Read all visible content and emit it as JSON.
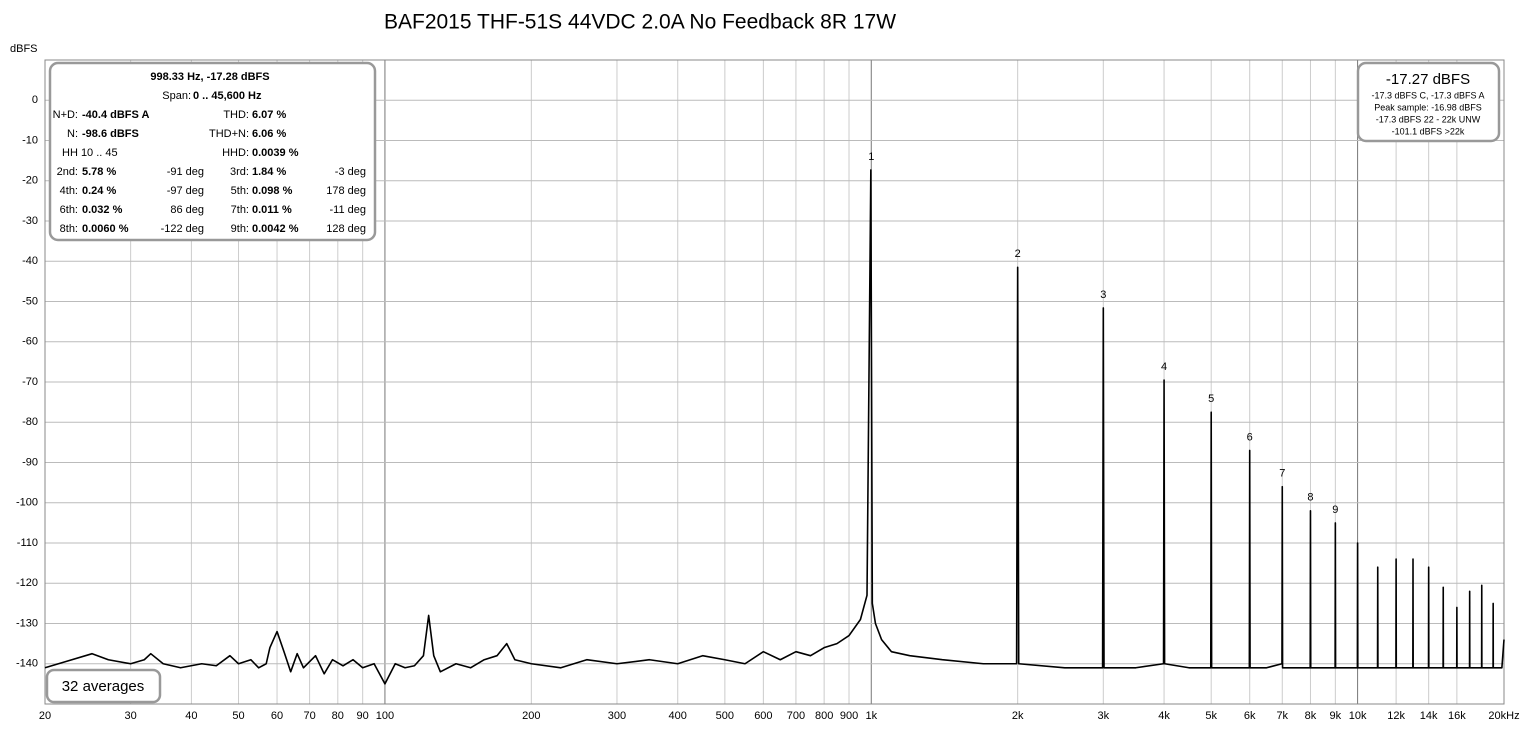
{
  "chart_data": {
    "type": "line",
    "title": "BAF2015 THF-51S 44VDC 2.0A No Feedback 8R 17W",
    "y_label": "dBFS",
    "xscale": "log",
    "grid": true,
    "xlim": [
      20,
      20000
    ],
    "ylim": [
      -150,
      10
    ],
    "xticks": [
      20,
      30,
      40,
      50,
      60,
      70,
      80,
      90,
      100,
      200,
      300,
      400,
      500,
      600,
      700,
      800,
      900,
      {
        "value": 1000,
        "label": "1k"
      },
      {
        "value": 2000,
        "label": "2k"
      },
      {
        "value": 3000,
        "label": "3k"
      },
      {
        "value": 4000,
        "label": "4k"
      },
      {
        "value": 5000,
        "label": "5k"
      },
      {
        "value": 6000,
        "label": "6k"
      },
      {
        "value": 7000,
        "label": "7k"
      },
      {
        "value": 8000,
        "label": "8k"
      },
      {
        "value": 9000,
        "label": "9k"
      },
      {
        "value": 10000,
        "label": "10k"
      },
      {
        "value": 12000,
        "label": "12k"
      },
      {
        "value": 14000,
        "label": "14k"
      },
      {
        "value": 16000,
        "label": "16k"
      },
      {
        "value": 20000,
        "label": "20kHz"
      }
    ],
    "yticks": [
      0,
      -10,
      -20,
      -30,
      -40,
      -50,
      -60,
      -70,
      -80,
      -90,
      -100,
      -110,
      -120,
      -130,
      -140
    ],
    "x": [
      20,
      22,
      25,
      27,
      30,
      32,
      33,
      35,
      38,
      42,
      45,
      48,
      50,
      53,
      55,
      57,
      58,
      60,
      62,
      64,
      66,
      68,
      72,
      75,
      78,
      82,
      86,
      90,
      95,
      100,
      105,
      110,
      115,
      120,
      123,
      126,
      130,
      140,
      150,
      160,
      170,
      178,
      185,
      200,
      230,
      260,
      300,
      350,
      400,
      450,
      500,
      550,
      600,
      650,
      700,
      750,
      800,
      850,
      900,
      950,
      980,
      998,
      1005,
      1020,
      1050,
      1100,
      1200,
      1400,
      1700,
      1990,
      2000,
      2010,
      2500,
      2990,
      3000,
      3010,
      3500,
      3990,
      4000,
      4010,
      4500,
      4990,
      5000,
      5010,
      5500,
      5990,
      6000,
      6010,
      6500,
      6990,
      7000,
      7010,
      7500,
      7990,
      8000,
      8010,
      8500,
      8990,
      9000,
      9010,
      9500,
      9990,
      10000,
      10010,
      10990,
      11000,
      11010,
      11990,
      12000,
      12010,
      12990,
      13000,
      13010,
      13990,
      14000,
      14010,
      14990,
      15000,
      15010,
      15990,
      16000,
      16010,
      16990,
      17000,
      17010,
      17990,
      18000,
      18010,
      18990,
      19000,
      19010,
      19800,
      20000
    ],
    "series": [
      {
        "name": "Spectrum",
        "color": "#000000",
        "values": [
          -141,
          -139.5,
          -137.5,
          -139,
          -140,
          -139,
          -137.5,
          -140,
          -141,
          -140,
          -140.5,
          -138,
          -140,
          -139,
          -141,
          -140,
          -136,
          -132,
          -137,
          -142,
          -137.5,
          -141,
          -138,
          -142.5,
          -139,
          -140.5,
          -139,
          -141,
          -140,
          -145,
          -140,
          -141,
          -140.5,
          -138,
          -128,
          -138,
          -142,
          -140,
          -141,
          -139,
          -138,
          -135,
          -139,
          -140,
          -141,
          -139,
          -140,
          -139,
          -140,
          -138,
          -139,
          -140,
          -137,
          -139,
          -137,
          -138,
          -136,
          -135,
          -133,
          -129,
          -123,
          -17.3,
          -125,
          -130,
          -134,
          -137,
          -138,
          -139,
          -140,
          -140,
          -41.5,
          -140,
          -141,
          -141,
          -51.6,
          -141,
          -141,
          -140,
          -69.5,
          -140,
          -141,
          -141,
          -77.5,
          -141,
          -141,
          -141,
          -87,
          -141,
          -141,
          -140,
          -96,
          -141,
          -141,
          -141,
          -102,
          -141,
          -141,
          -141,
          -105,
          -141,
          -141,
          -141,
          -110,
          -141,
          -141,
          -116,
          -141,
          -141,
          -114,
          -141,
          -141,
          -114,
          -141,
          -141,
          -116,
          -141,
          -141,
          -121,
          -141,
          -141,
          -126,
          -141,
          -141,
          -122,
          -141,
          -141,
          -120.5,
          -141,
          -141,
          -125,
          -141,
          -141,
          -134
        ]
      }
    ],
    "annotations": [
      {
        "text": "1",
        "x": 1000,
        "y": -17.3
      },
      {
        "text": "2",
        "x": 2000,
        "y": -41.5
      },
      {
        "text": "3",
        "x": 3000,
        "y": -51.6
      },
      {
        "text": "4",
        "x": 4000,
        "y": -69.5
      },
      {
        "text": "5",
        "x": 5000,
        "y": -77.5
      },
      {
        "text": "6",
        "x": 6000,
        "y": -87
      },
      {
        "text": "7",
        "x": 7000,
        "y": -96
      },
      {
        "text": "8",
        "x": 8000,
        "y": -102
      },
      {
        "text": "9",
        "x": 9000,
        "y": -105
      }
    ],
    "info_panel": {
      "header": "998.33 Hz, -17.28 dBFS",
      "span_label": "Span:",
      "span": "0 .. 45,600 Hz",
      "nd_label": "N+D:",
      "nd": "-40.4 dBFS A",
      "thd_label": "THD:",
      "thd": "6.07 %",
      "n_label": "N:",
      "n": "-98.6 dBFS",
      "thdn_label": "THD+N:",
      "thdn": "6.06 %",
      "hh_range": "HH 10 .. 45",
      "hhd_label": "HHD:",
      "hhd": "0.0039 %",
      "harmonic_rows": [
        [
          "2nd:",
          "5.78 %",
          "-91 deg",
          "3rd:",
          "1.84 %",
          "-3 deg"
        ],
        [
          "4th:",
          "0.24 %",
          "-97 deg",
          "5th:",
          "0.098 %",
          "178 deg"
        ],
        [
          "6th:",
          "0.032 %",
          "86 deg",
          "7th:",
          "0.011 %",
          "-11 deg"
        ],
        [
          "8th:",
          "0.0060 %",
          "-122 deg",
          "9th:",
          "0.0042 %",
          "128 deg"
        ]
      ]
    },
    "level_panel": {
      "level": "-17.27 dBFS",
      "lines": [
        "-17.3 dBFS C, -17.3 dBFS A",
        "Peak sample: -16.98 dBFS",
        "-17.3 dBFS 22 - 22k UNW",
        "-101.1 dBFS >22k"
      ]
    },
    "averages": "32 averages"
  }
}
